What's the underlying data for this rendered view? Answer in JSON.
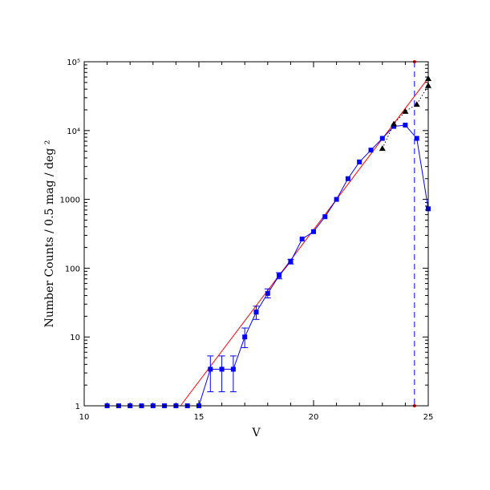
{
  "chart_data": {
    "type": "line",
    "title": "",
    "xlabel": "V",
    "ylabel": "Number Counts / 0.5 mag / deg ²",
    "xlim": [
      10,
      25
    ],
    "ylim": [
      1,
      100000
    ],
    "yscale": "log",
    "grid": false,
    "legend": "none",
    "x_ticks": [
      {
        "value": 10,
        "label": "10"
      },
      {
        "value": 15,
        "label": "15"
      },
      {
        "value": 20,
        "label": "20"
      },
      {
        "value": 25,
        "label": "25"
      }
    ],
    "y_ticks": [
      {
        "value": 1,
        "label": "1"
      },
      {
        "value": 10,
        "label": "10"
      },
      {
        "value": 100,
        "label": "100"
      },
      {
        "value": 1000,
        "label": "1000"
      },
      {
        "value": 10000,
        "label": "10⁴"
      },
      {
        "value": 100000,
        "label": "10⁵"
      }
    ],
    "series": [
      {
        "color": "#0000ff",
        "marker": "square",
        "line": "solid",
        "points": [
          {
            "x": 11.0,
            "y": 1
          },
          {
            "x": 11.5,
            "y": 1
          },
          {
            "x": 12.0,
            "y": 1
          },
          {
            "x": 12.5,
            "y": 1
          },
          {
            "x": 13.0,
            "y": 1
          },
          {
            "x": 13.5,
            "y": 1
          },
          {
            "x": 14.0,
            "y": 1
          },
          {
            "x": 14.5,
            "y": 1
          },
          {
            "x": 15.0,
            "y": 1
          },
          {
            "x": 15.5,
            "y": 3.4,
            "err_lo": 1.6,
            "err_hi": 5.3
          },
          {
            "x": 16.0,
            "y": 3.4,
            "err_lo": 1.6,
            "err_hi": 5.3
          },
          {
            "x": 16.5,
            "y": 3.4,
            "err_lo": 1.6,
            "err_hi": 5.3
          },
          {
            "x": 17.0,
            "y": 10,
            "err_lo": 7,
            "err_hi": 13.5
          },
          {
            "x": 17.5,
            "y": 23,
            "err_lo": 18,
            "err_hi": 28
          },
          {
            "x": 18.0,
            "y": 43,
            "err_lo": 37,
            "err_hi": 50
          },
          {
            "x": 18.5,
            "y": 78,
            "err_lo": 70,
            "err_hi": 86
          },
          {
            "x": 19.0,
            "y": 125,
            "err_lo": 115,
            "err_hi": 135
          },
          {
            "x": 19.5,
            "y": 265
          },
          {
            "x": 20.0,
            "y": 340
          },
          {
            "x": 20.5,
            "y": 560
          },
          {
            "x": 21.0,
            "y": 1000
          },
          {
            "x": 21.5,
            "y": 2000
          },
          {
            "x": 22.0,
            "y": 3500
          },
          {
            "x": 22.5,
            "y": 5200
          },
          {
            "x": 23.0,
            "y": 7700
          },
          {
            "x": 23.5,
            "y": 11500
          },
          {
            "x": 24.0,
            "y": 12000
          },
          {
            "x": 24.5,
            "y": 7700
          },
          {
            "x": 25.0,
            "y": 730
          }
        ]
      },
      {
        "color": "#000000",
        "marker": "triangle",
        "line": "dotted",
        "points": [
          {
            "x": 23.0,
            "y": 5500
          },
          {
            "x": 23.5,
            "y": 12500
          },
          {
            "x": 24.0,
            "y": 19000
          },
          {
            "x": 24.5,
            "y": 24000
          },
          {
            "x": 25.0,
            "y": 45000
          },
          {
            "x": 25.0,
            "y": 57000
          }
        ]
      },
      {
        "color": "#ff0000",
        "marker": "none",
        "line": "solid",
        "points": [
          {
            "x": 14.2,
            "y": 1
          },
          {
            "x": 25.0,
            "y": 58000
          }
        ]
      }
    ],
    "reference_lines": [
      {
        "axis": "x",
        "value": 24.4,
        "color": "#0000ff",
        "style": "dashed"
      }
    ]
  }
}
